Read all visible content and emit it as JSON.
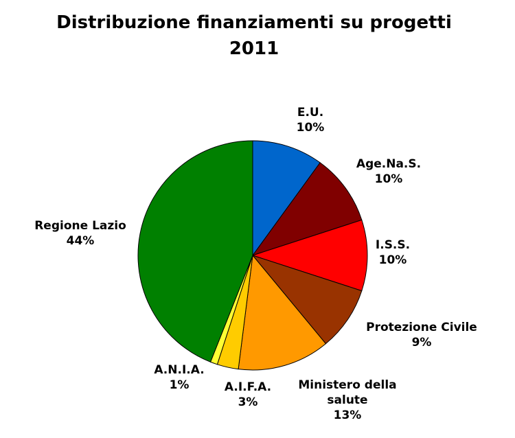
{
  "chart_data": {
    "type": "pie",
    "title": "Distribuzione finanziamenti su progetti",
    "subtitle": "2011",
    "categories": [
      "E.U.",
      "Age.Na.S.",
      "I.S.S.",
      "Protezione Civile",
      "Ministero della salute",
      "A.I.F.A.",
      "A.N.I.A.",
      "Regione Lazio"
    ],
    "values": [
      10,
      10,
      10,
      9,
      13,
      3,
      1,
      44
    ],
    "value_labels": [
      "10%",
      "10%",
      "10%",
      "9%",
      "13%",
      "3%",
      "1%",
      "44%"
    ],
    "colors": [
      "#0066cc",
      "#800000",
      "#ff0000",
      "#993300",
      "#ff9900",
      "#ffcc00",
      "#ffff33",
      "#008000"
    ]
  }
}
